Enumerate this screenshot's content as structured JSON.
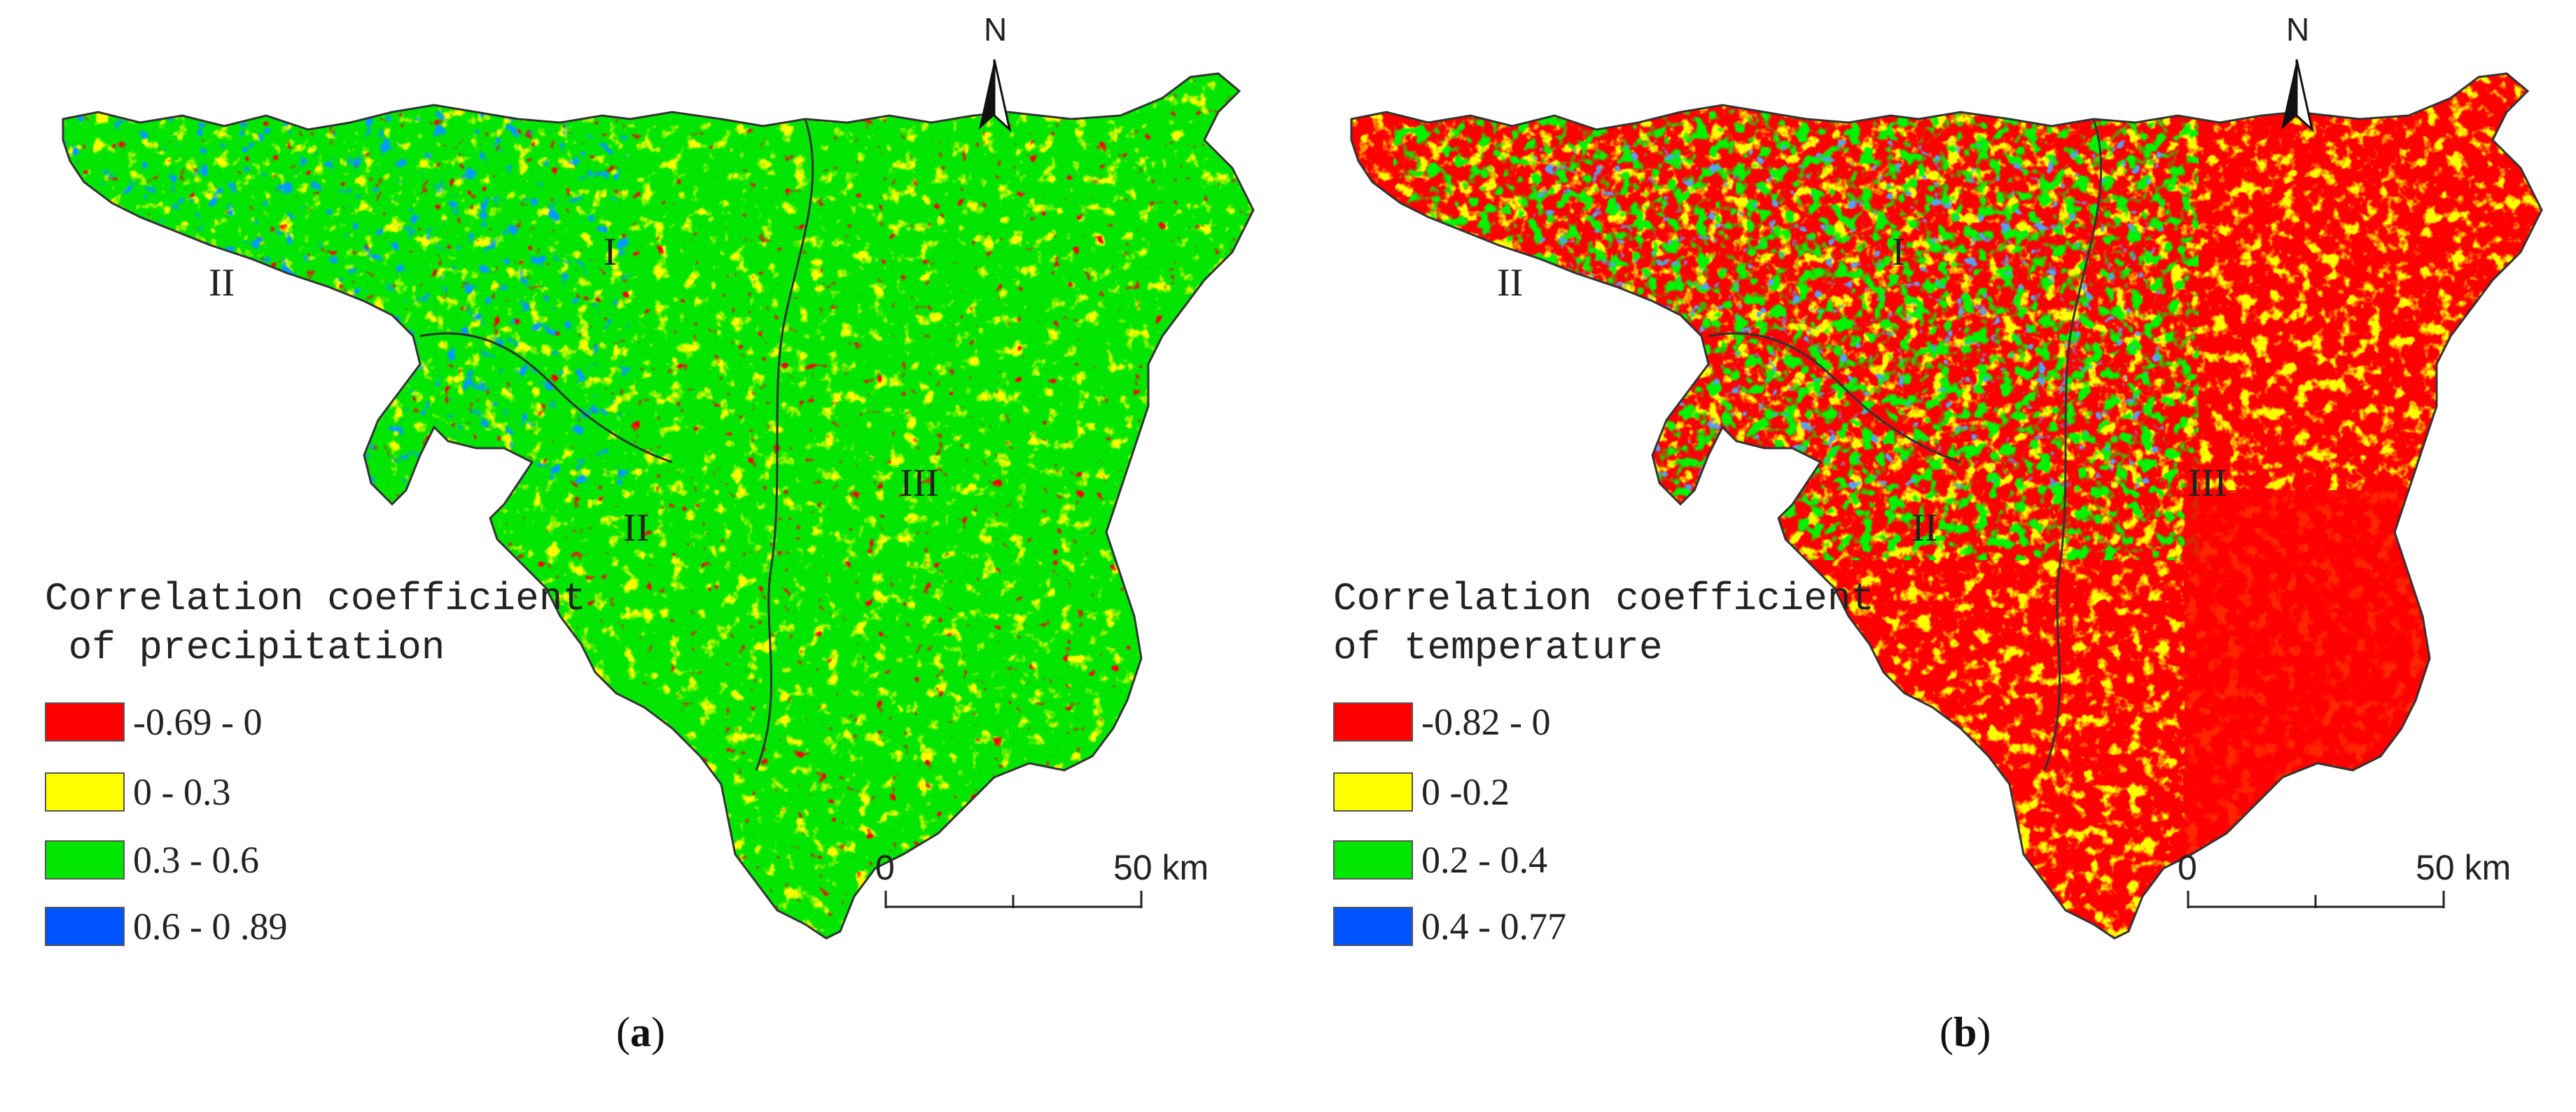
{
  "panels": [
    {
      "caption_letter": "a",
      "legend_title_line1": "Correlation coefficient",
      "legend_title_line2": " of precipitation",
      "legend": [
        {
          "label": "-0.69 - 0",
          "color": "#ff0000"
        },
        {
          "label": "0 - 0.3",
          "color": "#ffff00"
        },
        {
          "label": "0.3 - 0.6",
          "color": "#00e600"
        },
        {
          "label": "0.6 - 0 .89",
          "color": "#0055ff"
        }
      ],
      "regions": [
        "I",
        "II",
        "II",
        "III"
      ],
      "north_label": "N",
      "scale_zero": "0",
      "scale_end": "50 km"
    },
    {
      "caption_letter": "b",
      "legend_title_line1": "Correlation coefficient",
      "legend_title_line2": "of temperature",
      "legend": [
        {
          "label": "-0.82 - 0",
          "color": "#ff0000"
        },
        {
          "label": "0 -0.2",
          "color": "#ffff00"
        },
        {
          "label": "0.2 - 0.4",
          "color": "#00e600"
        },
        {
          "label": "0.4 - 0.77",
          "color": "#0055ff"
        }
      ],
      "regions": [
        "I",
        "II",
        "II",
        "III"
      ],
      "north_label": "N",
      "scale_zero": "0",
      "scale_end": "50 km"
    }
  ]
}
